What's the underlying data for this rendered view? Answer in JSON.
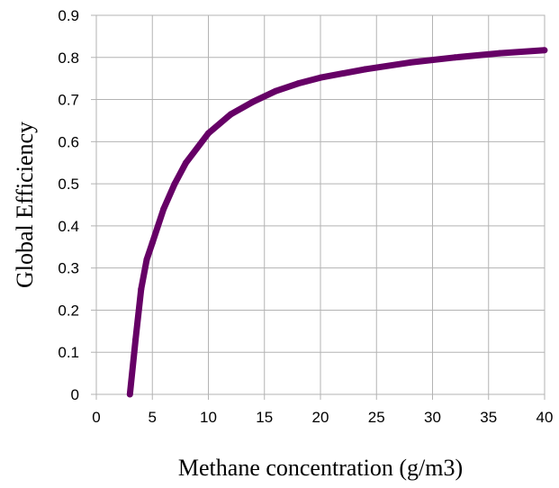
{
  "chart_data": {
    "type": "line",
    "title": "",
    "xlabel": "Methane concentration (g/m3)",
    "ylabel": "Global Efficiency",
    "xlim": [
      0,
      40
    ],
    "ylim": [
      0,
      0.9
    ],
    "xticks": [
      "0",
      "5",
      "10",
      "15",
      "20",
      "25",
      "30",
      "35",
      "40"
    ],
    "yticks": [
      "0",
      "0.1",
      "0.2",
      "0.3",
      "0.4",
      "0.5",
      "0.6",
      "0.7",
      "0.8",
      "0.9"
    ],
    "grid": true,
    "legend": "none",
    "line_color": "#660066",
    "grid_color": "#b3b3b3",
    "series": [
      {
        "x": [
          3.0,
          3.5,
          4.0,
          4.5,
          5.0,
          6.0,
          7.0,
          8.0,
          10.0,
          12.0,
          14.0,
          16.0,
          18.0,
          20.0,
          24.0,
          28.0,
          32.0,
          36.0,
          40.0
        ],
        "y": [
          0.0,
          0.13,
          0.25,
          0.32,
          0.36,
          0.44,
          0.5,
          0.55,
          0.62,
          0.665,
          0.695,
          0.72,
          0.738,
          0.752,
          0.772,
          0.788,
          0.8,
          0.81,
          0.817
        ]
      }
    ]
  }
}
